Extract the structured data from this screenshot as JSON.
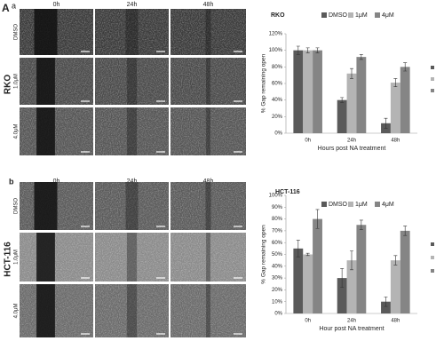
{
  "figure": {
    "panel_A": "A",
    "panel_a": "a",
    "panel_b": "b",
    "top": {
      "cell_line": "RKO",
      "columns": [
        "0h",
        "24h",
        "48h"
      ],
      "rows": [
        "DMSO",
        "1.0μM",
        "4.0μM"
      ]
    },
    "bottom": {
      "cell_line": "HCT-116",
      "columns": [
        "0h",
        "24h",
        "48h"
      ],
      "rows": [
        "DMSO",
        "1.0μM",
        "4.0μM"
      ]
    }
  },
  "chart_data": [
    {
      "type": "bar",
      "title": "RKO",
      "x_label": "Hours post NA treatment",
      "y_label": "% Gap remaining open",
      "categories": [
        "0h",
        "24h",
        "48h"
      ],
      "series": [
        {
          "name": "DMSO",
          "color": "#5a5a5a",
          "values": [
            100,
            40,
            12
          ],
          "errors": [
            5,
            3,
            6
          ]
        },
        {
          "name": "1μM",
          "color": "#b4b4b4",
          "values": [
            100,
            72,
            61
          ],
          "errors": [
            3,
            6,
            5
          ]
        },
        {
          "name": "4μM",
          "color": "#858585",
          "values": [
            100,
            92,
            80
          ],
          "errors": [
            3,
            3,
            5
          ]
        }
      ],
      "ylim": [
        0,
        120
      ],
      "yticks": [
        {
          "value": 0,
          "label": "0%"
        },
        {
          "value": 20,
          "label": "20%"
        },
        {
          "value": 40,
          "label": "40%"
        },
        {
          "value": 60,
          "label": "60%"
        },
        {
          "value": 80,
          "label": "80%"
        },
        {
          "value": 100,
          "label": "100%"
        },
        {
          "value": 120,
          "label": "120%"
        }
      ],
      "legend": "top"
    },
    {
      "type": "bar",
      "title": "HCT-116",
      "x_label": "Hour post NA treatment",
      "y_label": "% Gap remaining open",
      "categories": [
        "0h",
        "24h",
        "48h"
      ],
      "series": [
        {
          "name": "DMSO",
          "color": "#5a5a5a",
          "values": [
            55,
            30,
            10
          ],
          "errors": [
            7,
            8,
            4
          ]
        },
        {
          "name": "1μM",
          "color": "#b4b4b4",
          "values": [
            50,
            45,
            45
          ],
          "errors": [
            1,
            8,
            4
          ]
        },
        {
          "name": "4μM",
          "color": "#858585",
          "values": [
            80,
            75,
            70
          ],
          "errors": [
            8,
            4,
            4
          ]
        }
      ],
      "ylim": [
        0,
        100
      ],
      "yticks": [
        {
          "value": 0,
          "label": "0%"
        },
        {
          "value": 10,
          "label": "10%"
        },
        {
          "value": 20,
          "label": "20%"
        },
        {
          "value": 30,
          "label": "30%"
        },
        {
          "value": 40,
          "label": "40%"
        },
        {
          "value": 50,
          "label": "50%"
        },
        {
          "value": 60,
          "label": "60%"
        },
        {
          "value": 70,
          "label": "70%"
        },
        {
          "value": 80,
          "label": "80%"
        },
        {
          "value": 90,
          "label": "90%"
        },
        {
          "value": 100,
          "label": "100%"
        }
      ],
      "legend": "top"
    }
  ]
}
